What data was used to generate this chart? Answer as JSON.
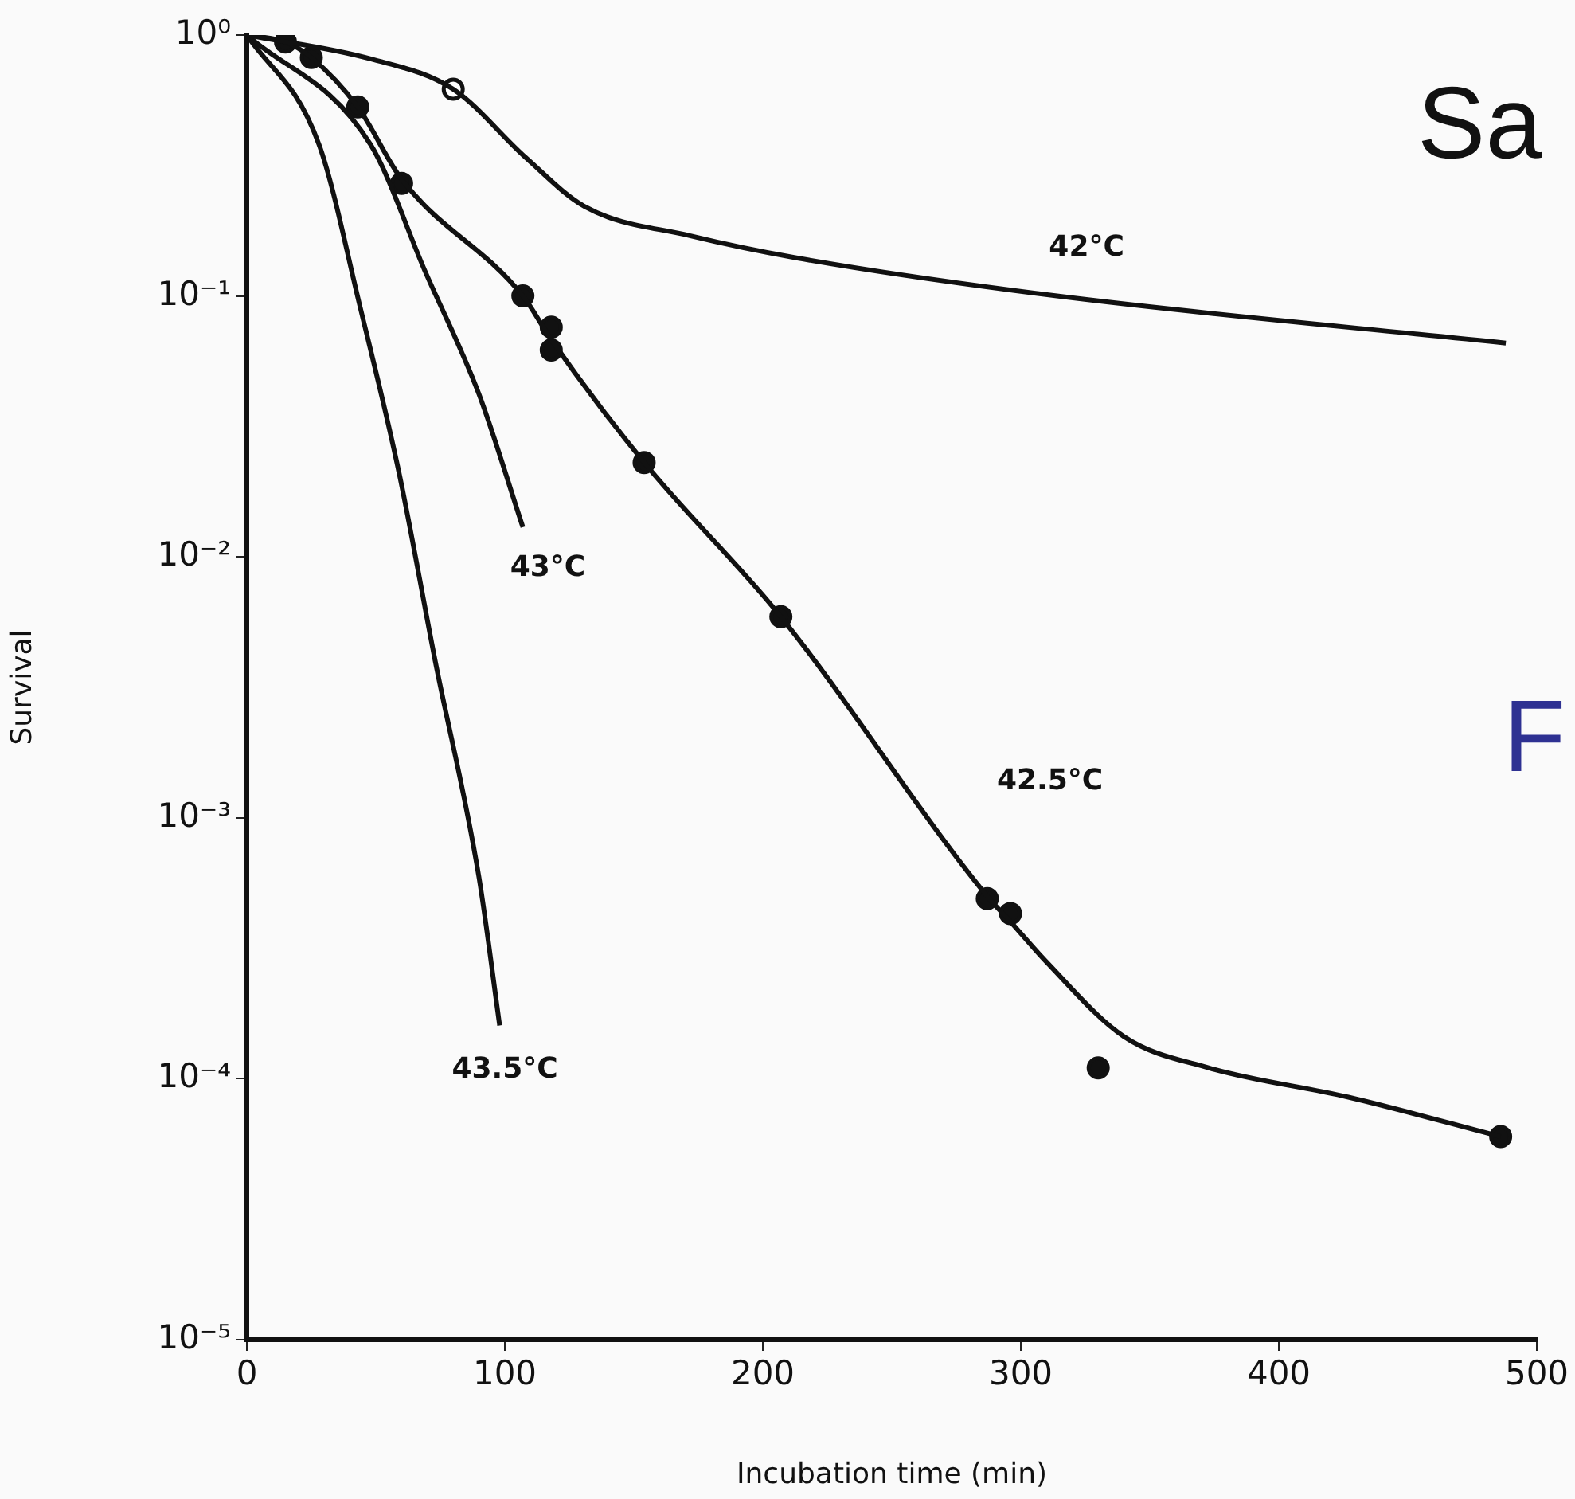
{
  "chart_data": {
    "type": "line",
    "xlabel": "Incubation time (min)",
    "ylabel": "Survival",
    "log": "y",
    "grid": false,
    "legend": false,
    "xlim": [
      0,
      500
    ],
    "xticks": [
      0,
      100,
      200,
      300,
      400,
      500
    ],
    "ylim": [
      1e-05,
      1
    ],
    "yticks": [
      {
        "value": 1,
        "label": "10⁰"
      },
      {
        "value": 0.1,
        "label": "10⁻¹"
      },
      {
        "value": 0.01,
        "label": "10⁻²"
      },
      {
        "value": 0.001,
        "label": "10⁻³"
      },
      {
        "value": 0.0001,
        "label": "10⁻⁴"
      },
      {
        "value": 1e-05,
        "label": "10⁻⁵"
      }
    ],
    "series": [
      {
        "name": "42°C",
        "color": "#111111",
        "marker": "none",
        "line_style": "solid",
        "x": [
          0,
          48,
          80,
          108,
          131,
          172,
          213,
          314,
          488
        ],
        "values": [
          1,
          0.81,
          0.62,
          0.34,
          0.22,
          0.17,
          0.14,
          0.1,
          0.066
        ]
      },
      {
        "name": "42.5°C",
        "color": "#111111",
        "marker": "none",
        "line_style": "solid",
        "x": [
          0,
          15,
          25,
          43,
          60,
          107,
          118,
          154,
          207,
          287,
          296,
          310,
          340,
          373,
          427,
          486
        ],
        "values": [
          1,
          0.94,
          0.82,
          0.53,
          0.28,
          0.1,
          0.068,
          0.023,
          0.0059,
          0.0005,
          0.0004,
          0.00028,
          0.000145,
          0.00011,
          8.5e-05,
          6e-05
        ]
      },
      {
        "name": "43°C",
        "color": "#111111",
        "marker": "none",
        "line_style": "solid",
        "x": [
          0,
          48,
          69,
          90,
          107
        ],
        "values": [
          1,
          0.38,
          0.125,
          0.042,
          0.013
        ]
      },
      {
        "name": "43.5°C",
        "color": "#111111",
        "marker": "none",
        "line_style": "solid",
        "x": [
          0,
          28,
          44,
          59,
          73,
          90,
          98
        ],
        "values": [
          1,
          0.38,
          0.09,
          0.021,
          0.004,
          0.00059,
          0.00016
        ]
      },
      {
        "type": "scatter",
        "color": "#111111",
        "marker": "circle",
        "x": [
          15,
          25,
          43,
          60,
          107,
          118,
          118,
          154,
          207,
          287,
          296,
          330,
          486
        ],
        "values": [
          0.94,
          0.82,
          0.53,
          0.27,
          0.1,
          0.076,
          0.062,
          0.023,
          0.0059,
          0.00049,
          0.00043,
          0.00011,
          6e-05
        ]
      },
      {
        "type": "scatter",
        "color": "#ffffff",
        "marker": "circle",
        "x": [
          80
        ],
        "values": [
          0.62
        ]
      }
    ],
    "annotations": [
      "Sa",
      "F"
    ]
  }
}
